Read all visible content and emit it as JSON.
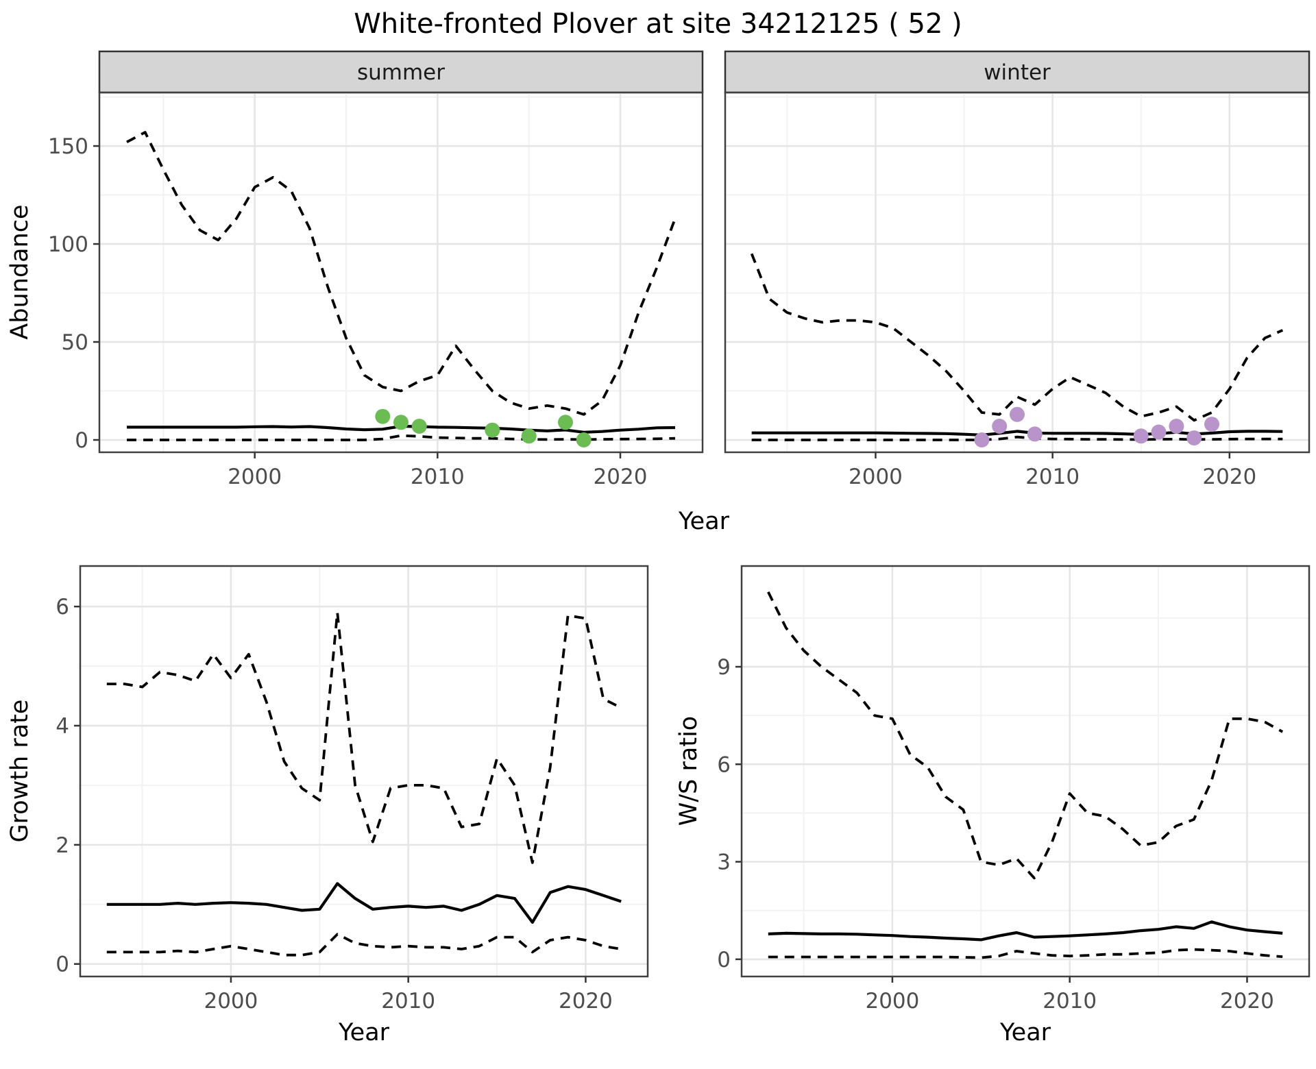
{
  "title": "White-fronted Plover at site 34212125 ( 52 )",
  "facets": [
    {
      "label": "summer"
    },
    {
      "label": "winter"
    }
  ],
  "axes": {
    "abundance_label": "Abundance",
    "growth_label": "Growth rate",
    "ws_label": "W/S ratio",
    "top_x_label": "Year",
    "bottom_left_x_label": "Year",
    "bottom_right_x_label": "Year"
  },
  "colors": {
    "summer_points": "#6cbc54",
    "winter_points": "#b894ca",
    "line": "#000000",
    "strip_fill": "#d5d5d5",
    "panel_border": "#404040",
    "grid_major": "#e5e5e5",
    "grid_minor": "#f2f2f2",
    "tick_text": "#4d4d4d",
    "tick_mark": "#333333"
  },
  "chart_data": [
    {
      "id": "abundance-summer",
      "type": "line",
      "facet": "summer",
      "title": "",
      "xlabel": "Year",
      "ylabel": "Abundance",
      "x": [
        1993,
        1994,
        1995,
        1996,
        1997,
        1998,
        1999,
        2000,
        2001,
        2002,
        2003,
        2004,
        2005,
        2006,
        2007,
        2008,
        2009,
        2010,
        2011,
        2012,
        2013,
        2014,
        2015,
        2016,
        2017,
        2018,
        2019,
        2020,
        2021,
        2022,
        2023
      ],
      "series": [
        {
          "name": "upper_ci",
          "style": "dashed",
          "values": [
            152,
            157,
            138,
            120,
            107,
            102,
            113,
            129,
            134,
            127,
            108,
            78,
            52,
            33,
            27,
            25,
            30,
            33,
            48,
            36,
            25,
            19,
            16,
            17.5,
            16,
            13,
            20,
            38,
            65,
            88,
            113
          ]
        },
        {
          "name": "median",
          "style": "solid",
          "values": [
            6.5,
            6.5,
            6.5,
            6.5,
            6.5,
            6.5,
            6.5,
            6.7,
            6.8,
            6.6,
            6.8,
            6.3,
            5.6,
            5.2,
            5.5,
            7.0,
            6.8,
            6.5,
            6.4,
            6.2,
            6.0,
            5.6,
            5.0,
            4.6,
            5.1,
            3.9,
            4.3,
            5.0,
            5.5,
            6.2,
            6.3
          ]
        },
        {
          "name": "lower_ci",
          "style": "dashed",
          "values": [
            0,
            0,
            0,
            0,
            0,
            0,
            0,
            0,
            0,
            0,
            0,
            0,
            0,
            0,
            0.5,
            2.2,
            1.8,
            1.2,
            1.0,
            0.8,
            0.8,
            0.5,
            0.3,
            0.2,
            0.3,
            0.2,
            0.3,
            0.4,
            0.5,
            0.6,
            0.8
          ]
        }
      ],
      "points": {
        "name": "observed-counts-summer",
        "color_key": "summer_points",
        "data": [
          [
            2007,
            12
          ],
          [
            2008,
            9
          ],
          [
            2009,
            7
          ],
          [
            2013,
            5
          ],
          [
            2015,
            2
          ],
          [
            2017,
            9
          ],
          [
            2018,
            0
          ]
        ]
      },
      "ylim": [
        -6.3,
        177.3
      ],
      "yticks": [
        0,
        50,
        100,
        150
      ],
      "yminor": [
        25,
        75,
        125,
        175
      ],
      "xticks": [
        2000,
        2010,
        2020
      ],
      "xminor": [
        1995,
        2005,
        2015
      ],
      "grid": true,
      "legend": "none"
    },
    {
      "id": "abundance-winter",
      "type": "line",
      "facet": "winter",
      "title": "",
      "xlabel": "Year",
      "ylabel": "Abundance",
      "x": [
        1993,
        1994,
        1995,
        1996,
        1997,
        1998,
        1999,
        2000,
        2001,
        2002,
        2003,
        2004,
        2005,
        2006,
        2007,
        2008,
        2009,
        2010,
        2011,
        2012,
        2013,
        2014,
        2015,
        2016,
        2017,
        2018,
        2019,
        2020,
        2021,
        2022,
        2023
      ],
      "series": [
        {
          "name": "upper_ci",
          "style": "dashed",
          "values": [
            95,
            72,
            65,
            62,
            60,
            61,
            61,
            60,
            57,
            50,
            43,
            35,
            25,
            14,
            13,
            22,
            18,
            26,
            32,
            28,
            24,
            17,
            12,
            14,
            17,
            10,
            14,
            26,
            42,
            52,
            56
          ]
        },
        {
          "name": "median",
          "style": "solid",
          "values": [
            3.6,
            3.6,
            3.6,
            3.6,
            3.6,
            3.6,
            3.6,
            3.6,
            3.5,
            3.4,
            3.3,
            3.2,
            2.9,
            2.5,
            3.4,
            4.4,
            3.5,
            3.4,
            3.4,
            3.4,
            3.3,
            3.1,
            2.8,
            3.2,
            3.9,
            3.0,
            3.5,
            4.2,
            4.4,
            4.4,
            4.3
          ]
        },
        {
          "name": "lower_ci",
          "style": "dashed",
          "values": [
            0,
            0,
            0,
            0,
            0,
            0,
            0,
            0,
            0,
            0,
            0,
            0,
            0,
            0,
            0.5,
            1.5,
            0.8,
            0.5,
            0.4,
            0.3,
            0.3,
            0.2,
            0.2,
            0.3,
            0.4,
            0.2,
            0.3,
            0.4,
            0.5,
            0.5,
            0.5
          ]
        }
      ],
      "points": {
        "name": "observed-counts-winter",
        "color_key": "winter_points",
        "data": [
          [
            2006,
            0
          ],
          [
            2007,
            7
          ],
          [
            2008,
            13
          ],
          [
            2009,
            3
          ],
          [
            2015,
            2
          ],
          [
            2016,
            4
          ],
          [
            2017,
            7
          ],
          [
            2018,
            1
          ],
          [
            2019,
            8
          ]
        ]
      },
      "ylim": [
        -6.3,
        177.3
      ],
      "yticks": [
        0,
        50,
        100,
        150
      ],
      "yminor": [
        25,
        75,
        125,
        175
      ],
      "xticks": [
        2000,
        2010,
        2020
      ],
      "xminor": [
        1995,
        2005,
        2015
      ],
      "grid": true,
      "legend": "none",
      "hide_ytick_labels": true
    },
    {
      "id": "growth-rate",
      "type": "line",
      "facet": "",
      "title": "",
      "xlabel": "Year",
      "ylabel": "Growth rate",
      "x": [
        1993,
        1994,
        1995,
        1996,
        1997,
        1998,
        1999,
        2000,
        2001,
        2002,
        2003,
        2004,
        2005,
        2006,
        2007,
        2008,
        2009,
        2010,
        2011,
        2012,
        2013,
        2014,
        2015,
        2016,
        2017,
        2018,
        2019,
        2020,
        2021,
        2022
      ],
      "series": [
        {
          "name": "upper_ci",
          "style": "dashed",
          "values": [
            4.7,
            4.7,
            4.65,
            4.9,
            4.85,
            4.75,
            5.2,
            4.8,
            5.2,
            4.4,
            3.4,
            2.95,
            2.75,
            5.9,
            3.0,
            2.05,
            2.95,
            3.0,
            3.0,
            2.95,
            2.3,
            2.35,
            3.45,
            3.0,
            1.7,
            3.3,
            5.85,
            5.8,
            4.45,
            4.3
          ]
        },
        {
          "name": "median",
          "style": "solid",
          "values": [
            1.0,
            1.0,
            1.0,
            1.0,
            1.02,
            1.0,
            1.02,
            1.03,
            1.02,
            1.0,
            0.95,
            0.9,
            0.92,
            1.35,
            1.1,
            0.92,
            0.95,
            0.97,
            0.95,
            0.97,
            0.9,
            1.0,
            1.15,
            1.1,
            0.7,
            1.2,
            1.3,
            1.25,
            1.15,
            1.05
          ]
        },
        {
          "name": "lower_ci",
          "style": "dashed",
          "values": [
            0.2,
            0.2,
            0.2,
            0.2,
            0.22,
            0.2,
            0.25,
            0.3,
            0.25,
            0.2,
            0.15,
            0.15,
            0.2,
            0.5,
            0.35,
            0.3,
            0.28,
            0.3,
            0.28,
            0.28,
            0.25,
            0.3,
            0.45,
            0.45,
            0.2,
            0.4,
            0.45,
            0.4,
            0.3,
            0.25
          ]
        }
      ],
      "ylim": [
        -0.21,
        6.68
      ],
      "yticks": [
        0,
        2,
        4,
        6
      ],
      "yminor": [
        1,
        3,
        5
      ],
      "xticks": [
        2000,
        2010,
        2020
      ],
      "xminor": [
        1995,
        2005,
        2015
      ],
      "grid": true,
      "legend": "none"
    },
    {
      "id": "ws-ratio",
      "type": "line",
      "facet": "",
      "title": "",
      "xlabel": "Year",
      "ylabel": "W/S ratio",
      "x": [
        1993,
        1994,
        1995,
        1996,
        1997,
        1998,
        1999,
        2000,
        2001,
        2002,
        2003,
        2004,
        2005,
        2006,
        2007,
        2008,
        2009,
        2010,
        2011,
        2012,
        2013,
        2014,
        2015,
        2016,
        2017,
        2018,
        2019,
        2020,
        2021,
        2022
      ],
      "series": [
        {
          "name": "upper_ci",
          "style": "dashed",
          "values": [
            11.3,
            10.2,
            9.5,
            9.0,
            8.6,
            8.2,
            7.5,
            7.4,
            6.3,
            5.9,
            5.0,
            4.6,
            3.0,
            2.9,
            3.1,
            2.5,
            3.6,
            5.1,
            4.5,
            4.4,
            4.0,
            3.5,
            3.6,
            4.1,
            4.3,
            5.5,
            7.4,
            7.4,
            7.3,
            7.0
          ]
        },
        {
          "name": "median",
          "style": "solid",
          "values": [
            0.78,
            0.8,
            0.79,
            0.78,
            0.78,
            0.77,
            0.75,
            0.73,
            0.7,
            0.68,
            0.65,
            0.63,
            0.6,
            0.72,
            0.82,
            0.68,
            0.7,
            0.72,
            0.75,
            0.78,
            0.82,
            0.88,
            0.92,
            1.0,
            0.95,
            1.15,
            1.0,
            0.9,
            0.85,
            0.8
          ]
        },
        {
          "name": "lower_ci",
          "style": "dashed",
          "values": [
            0.07,
            0.07,
            0.07,
            0.07,
            0.07,
            0.07,
            0.07,
            0.07,
            0.07,
            0.07,
            0.07,
            0.06,
            0.05,
            0.1,
            0.25,
            0.18,
            0.12,
            0.1,
            0.12,
            0.15,
            0.15,
            0.18,
            0.2,
            0.28,
            0.3,
            0.28,
            0.25,
            0.18,
            0.12,
            0.08
          ]
        }
      ],
      "ylim": [
        -0.53,
        12.1
      ],
      "yticks": [
        0,
        3,
        6,
        9
      ],
      "yminor": [
        1.5,
        4.5,
        7.5,
        10.5
      ],
      "xticks": [
        2000,
        2010,
        2020
      ],
      "xminor": [
        1995,
        2005,
        2015
      ],
      "grid": true,
      "legend": "none"
    }
  ]
}
